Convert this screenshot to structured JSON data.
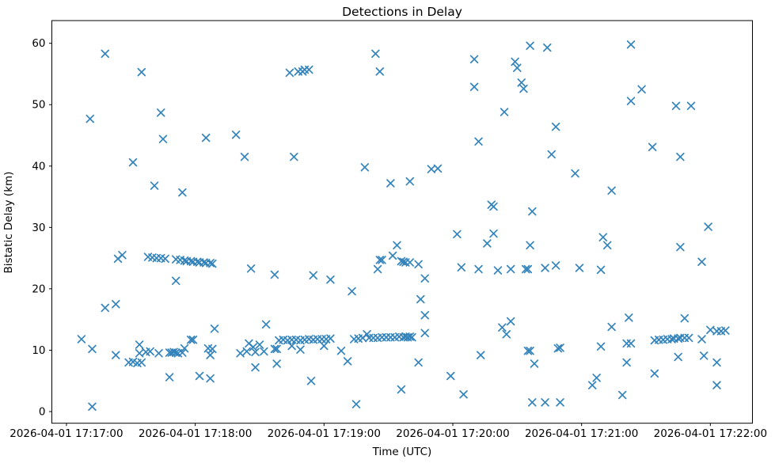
{
  "chart_data": {
    "type": "scatter",
    "title": "Detections in Delay",
    "xlabel": "Time (UTC)",
    "ylabel": "Bistatic Delay (km)",
    "marker": "x",
    "marker_color": "#1f77b4",
    "grid": false,
    "legend": "none",
    "x_unit": "seconds after 2026-04-01 17:17:00 UTC",
    "xlim": [
      -6.8,
      319.6
    ],
    "ylim": [
      -1.9,
      63.7
    ],
    "y_ticks": [
      0,
      10,
      20,
      30,
      40,
      50,
      60
    ],
    "x_ticks": [
      {
        "t": 0,
        "label": "2026-04-01 17:17:00"
      },
      {
        "t": 60,
        "label": "2026-04-01 17:18:00"
      },
      {
        "t": 120,
        "label": "2026-04-01 17:19:00"
      },
      {
        "t": 180,
        "label": "2026-04-01 17:20:00"
      },
      {
        "t": 240,
        "label": "2026-04-01 17:21:00"
      },
      {
        "t": 300,
        "label": "2026-04-01 17:22:00"
      }
    ],
    "points": [
      [
        11,
        47.7
      ],
      [
        18,
        58.3
      ],
      [
        35,
        55.3
      ],
      [
        44,
        48.7
      ],
      [
        45,
        44.4
      ],
      [
        65,
        44.6
      ],
      [
        79,
        45.1
      ],
      [
        83,
        41.5
      ],
      [
        104,
        55.2
      ],
      [
        108,
        55.4
      ],
      [
        110,
        55.4
      ],
      [
        111,
        55.7
      ],
      [
        113,
        55.7
      ],
      [
        106,
        41.5
      ],
      [
        144,
        58.3
      ],
      [
        146,
        55.4
      ],
      [
        190,
        57.4
      ],
      [
        190,
        52.9
      ],
      [
        192,
        44.0
      ],
      [
        204,
        48.8
      ],
      [
        209,
        57.0
      ],
      [
        210,
        56.0
      ],
      [
        212,
        53.6
      ],
      [
        213,
        52.6
      ],
      [
        216,
        59.6
      ],
      [
        224,
        59.3
      ],
      [
        226,
        41.9
      ],
      [
        228,
        46.4
      ],
      [
        263,
        59.8
      ],
      [
        263,
        50.6
      ],
      [
        268,
        52.5
      ],
      [
        273,
        43.1
      ],
      [
        284,
        49.8
      ],
      [
        291,
        49.8
      ],
      [
        286,
        41.5
      ],
      [
        31,
        40.6
      ],
      [
        41,
        36.8
      ],
      [
        54,
        35.7
      ],
      [
        24,
        24.9
      ],
      [
        26,
        25.5
      ],
      [
        38,
        25.2
      ],
      [
        40,
        25.1
      ],
      [
        42,
        25.0
      ],
      [
        44,
        25.0
      ],
      [
        46,
        24.9
      ],
      [
        51,
        24.8
      ],
      [
        53,
        24.7
      ],
      [
        55,
        24.6
      ],
      [
        56,
        24.5
      ],
      [
        58,
        24.5
      ],
      [
        59,
        24.4
      ],
      [
        61,
        24.4
      ],
      [
        62,
        24.3
      ],
      [
        64,
        24.3
      ],
      [
        65,
        24.2
      ],
      [
        67,
        24.2
      ],
      [
        68,
        24.1
      ],
      [
        51,
        21.3
      ],
      [
        86,
        23.3
      ],
      [
        97,
        22.3
      ],
      [
        115,
        22.2
      ],
      [
        123,
        21.5
      ],
      [
        133,
        19.6
      ],
      [
        139,
        39.8
      ],
      [
        151,
        37.2
      ],
      [
        145,
        23.2
      ],
      [
        146,
        24.7
      ],
      [
        147,
        24.7
      ],
      [
        152,
        25.4
      ],
      [
        154,
        27.1
      ],
      [
        156,
        24.5
      ],
      [
        157,
        24.4
      ],
      [
        158,
        24.3
      ],
      [
        160,
        24.3
      ],
      [
        164,
        24.0
      ],
      [
        167,
        21.7
      ],
      [
        160,
        37.5
      ],
      [
        170,
        39.5
      ],
      [
        173,
        39.6
      ],
      [
        182,
        28.9
      ],
      [
        184,
        23.5
      ],
      [
        192,
        23.2
      ],
      [
        196,
        27.4
      ],
      [
        198,
        33.7
      ],
      [
        199,
        33.4
      ],
      [
        199,
        29.0
      ],
      [
        201,
        23.0
      ],
      [
        207,
        23.2
      ],
      [
        214,
        23.2
      ],
      [
        215,
        23.2
      ],
      [
        216,
        27.1
      ],
      [
        217,
        32.6
      ],
      [
        223,
        23.4
      ],
      [
        228,
        23.8
      ],
      [
        237,
        38.8
      ],
      [
        239,
        23.4
      ],
      [
        249,
        23.1
      ],
      [
        250,
        28.4
      ],
      [
        252,
        27.1
      ],
      [
        254,
        36.0
      ],
      [
        286,
        26.8
      ],
      [
        296,
        24.4
      ],
      [
        299,
        30.1
      ],
      [
        7,
        11.8
      ],
      [
        12,
        10.2
      ],
      [
        12,
        0.8
      ],
      [
        18,
        16.9
      ],
      [
        23,
        17.5
      ],
      [
        23,
        9.2
      ],
      [
        29,
        8.0
      ],
      [
        31,
        8.1
      ],
      [
        33,
        7.9
      ],
      [
        35,
        8.0
      ],
      [
        34,
        10.9
      ],
      [
        34,
        9.5
      ],
      [
        37,
        9.7
      ],
      [
        39,
        9.8
      ],
      [
        43,
        9.5
      ],
      [
        48,
        9.6
      ],
      [
        49,
        9.6
      ],
      [
        50,
        9.7
      ],
      [
        51,
        9.6
      ],
      [
        52,
        9.5
      ],
      [
        54,
        9.6
      ],
      [
        55,
        10.3
      ],
      [
        58,
        11.7
      ],
      [
        59,
        11.7
      ],
      [
        66,
        10.3
      ],
      [
        67,
        9.2
      ],
      [
        68,
        10.2
      ],
      [
        69,
        13.5
      ],
      [
        48,
        5.6
      ],
      [
        62,
        5.8
      ],
      [
        67,
        5.4
      ],
      [
        81,
        9.5
      ],
      [
        84,
        9.8
      ],
      [
        85,
        11.1
      ],
      [
        87,
        10.5
      ],
      [
        88,
        9.7
      ],
      [
        90,
        10.9
      ],
      [
        92,
        9.8
      ],
      [
        88,
        7.2
      ],
      [
        93,
        14.2
      ],
      [
        97,
        10.2
      ],
      [
        98,
        10.2
      ],
      [
        98,
        7.8
      ],
      [
        99,
        11.6
      ],
      [
        101,
        11.7
      ],
      [
        103,
        11.6
      ],
      [
        105,
        11.7
      ],
      [
        107,
        11.7
      ],
      [
        109,
        11.6
      ],
      [
        111,
        11.7
      ],
      [
        113,
        11.8
      ],
      [
        115,
        11.7
      ],
      [
        117,
        11.8
      ],
      [
        119,
        11.8
      ],
      [
        121,
        11.8
      ],
      [
        123,
        11.9
      ],
      [
        105,
        10.7
      ],
      [
        109,
        10.1
      ],
      [
        120,
        10.7
      ],
      [
        128,
        9.9
      ],
      [
        131,
        8.2
      ],
      [
        114,
        5.0
      ],
      [
        135,
        1.2
      ],
      [
        134,
        11.8
      ],
      [
        136,
        11.9
      ],
      [
        138,
        12.0
      ],
      [
        140,
        12.6
      ],
      [
        141,
        12.0
      ],
      [
        143,
        12.0
      ],
      [
        145,
        12.0
      ],
      [
        147,
        12.1
      ],
      [
        149,
        12.1
      ],
      [
        151,
        12.1
      ],
      [
        153,
        12.1
      ],
      [
        155,
        12.2
      ],
      [
        156,
        3.6
      ],
      [
        157,
        12.1
      ],
      [
        158,
        12.2
      ],
      [
        159,
        12.1
      ],
      [
        160,
        12.2
      ],
      [
        161,
        12.1
      ],
      [
        164,
        8.0
      ],
      [
        165,
        18.3
      ],
      [
        167,
        15.7
      ],
      [
        167,
        12.8
      ],
      [
        179,
        5.8
      ],
      [
        185,
        2.8
      ],
      [
        193,
        9.2
      ],
      [
        203,
        13.7
      ],
      [
        205,
        12.6
      ],
      [
        207,
        14.7
      ],
      [
        215,
        9.9
      ],
      [
        216,
        9.9
      ],
      [
        218,
        7.8
      ],
      [
        229,
        10.3
      ],
      [
        230,
        10.4
      ],
      [
        217,
        1.5
      ],
      [
        223,
        1.5
      ],
      [
        230,
        1.5
      ],
      [
        245,
        4.3
      ],
      [
        247,
        5.5
      ],
      [
        249,
        10.6
      ],
      [
        254,
        13.8
      ],
      [
        259,
        2.7
      ],
      [
        261,
        11.1
      ],
      [
        263,
        11.1
      ],
      [
        261,
        8.0
      ],
      [
        262,
        15.3
      ],
      [
        274,
        6.2
      ],
      [
        274,
        11.6
      ],
      [
        276,
        11.7
      ],
      [
        278,
        11.7
      ],
      [
        280,
        11.8
      ],
      [
        282,
        11.8
      ],
      [
        283,
        11.9
      ],
      [
        285,
        11.9
      ],
      [
        286,
        12.0
      ],
      [
        288,
        12.0
      ],
      [
        290,
        12.0
      ],
      [
        285,
        8.9
      ],
      [
        288,
        15.2
      ],
      [
        296,
        11.8
      ],
      [
        297,
        9.1
      ],
      [
        300,
        13.3
      ],
      [
        303,
        13.1
      ],
      [
        305,
        13.1
      ],
      [
        307,
        13.2
      ],
      [
        303,
        8.0
      ],
      [
        303,
        4.3
      ]
    ]
  }
}
